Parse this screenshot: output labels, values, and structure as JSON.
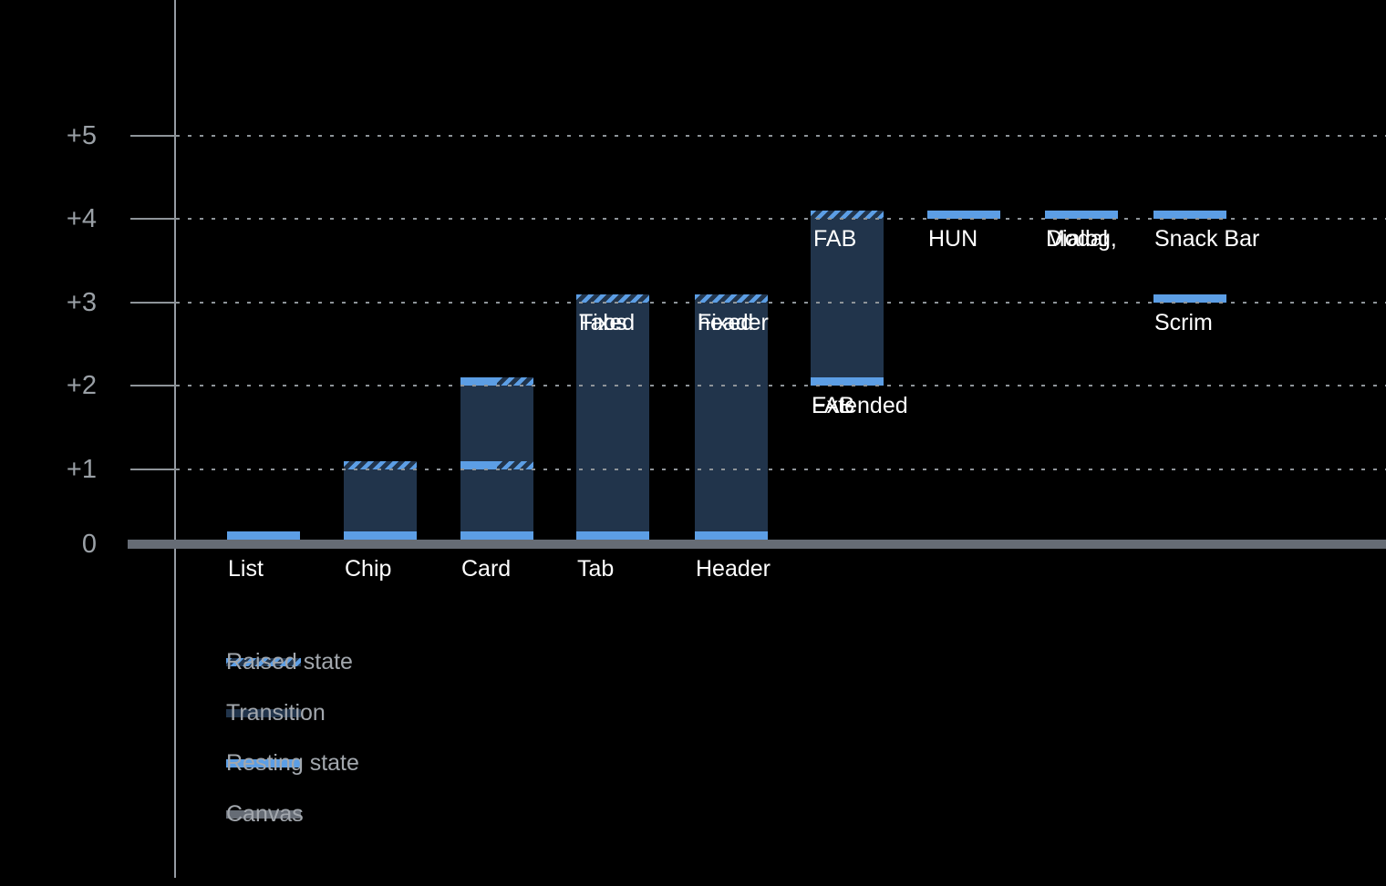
{
  "chart_data": {
    "type": "bar",
    "y_axis": {
      "tick_labels": [
        "+5",
        "+4",
        "+3",
        "+2",
        "+1",
        "0"
      ],
      "tick_values": [
        5,
        4,
        3,
        2,
        1,
        0
      ],
      "ylim": [
        0,
        5.5
      ],
      "grid": "dotted"
    },
    "components": [
      {
        "name": "list",
        "label_lines": [
          "List"
        ],
        "label_placement": "baseline",
        "column": 0,
        "segments": [
          {
            "kind": "resting",
            "from": 0,
            "to": 0.1
          }
        ]
      },
      {
        "name": "chip",
        "label_lines": [
          "Chip"
        ],
        "label_placement": "baseline",
        "column": 1,
        "segments": [
          {
            "kind": "resting",
            "from": 0,
            "to": 0.1
          },
          {
            "kind": "transition",
            "from": 0.1,
            "to": 1
          },
          {
            "kind": "raised",
            "from": 1,
            "to": 1.1
          }
        ]
      },
      {
        "name": "card",
        "label_lines": [
          "Card"
        ],
        "label_placement": "baseline",
        "column": 2,
        "segments": [
          {
            "kind": "resting",
            "from": 0,
            "to": 0.1
          },
          {
            "kind": "transition",
            "from": 0.1,
            "to": 1
          },
          {
            "kind": "resting-raised-split",
            "from": 1,
            "to": 1.1
          },
          {
            "kind": "transition",
            "from": 1.1,
            "to": 2
          },
          {
            "kind": "resting-raised-split",
            "from": 2,
            "to": 2.1
          }
        ]
      },
      {
        "name": "tab",
        "label_lines": [
          "Tab"
        ],
        "label_placement": "baseline",
        "inner_label_lines": [
          "Fixed",
          "Tabs"
        ],
        "column": 3,
        "segments": [
          {
            "kind": "resting",
            "from": 0,
            "to": 0.1
          },
          {
            "kind": "transition",
            "from": 0.1,
            "to": 3
          },
          {
            "kind": "raised",
            "from": 3,
            "to": 3.1
          }
        ]
      },
      {
        "name": "header",
        "label_lines": [
          "Header"
        ],
        "label_placement": "baseline",
        "inner_label_lines": [
          "Fixed",
          "header"
        ],
        "column": 4,
        "segments": [
          {
            "kind": "resting",
            "from": 0,
            "to": 0.1
          },
          {
            "kind": "transition",
            "from": 0.1,
            "to": 3
          },
          {
            "kind": "raised",
            "from": 3,
            "to": 3.1
          }
        ]
      },
      {
        "name": "extended-fab",
        "label_lines": [
          "Extended",
          "FAB"
        ],
        "label_placement": "below-bar",
        "inner_label_lines": [
          "FAB"
        ],
        "column": 5,
        "segments": [
          {
            "kind": "resting",
            "from": 2,
            "to": 2.1
          },
          {
            "kind": "transition",
            "from": 2.1,
            "to": 4
          },
          {
            "kind": "raised",
            "from": 4,
            "to": 4.1
          }
        ]
      },
      {
        "name": "hun",
        "label_lines": [
          "HUN"
        ],
        "label_placement": "below-bar",
        "column": 6,
        "segments": [
          {
            "kind": "resting",
            "from": 4,
            "to": 4.1
          }
        ]
      },
      {
        "name": "dialog-modal",
        "label_lines": [
          "Dialog,",
          "Modal"
        ],
        "label_placement": "below-bar",
        "column": 7,
        "segments": [
          {
            "kind": "resting",
            "from": 4,
            "to": 4.1
          }
        ]
      },
      {
        "name": "snack-bar",
        "label_lines": [
          "Snack Bar"
        ],
        "label_placement": "below-bar",
        "column": 8,
        "segments": [
          {
            "kind": "resting",
            "from": 4,
            "to": 4.1
          }
        ]
      },
      {
        "name": "scrim",
        "label_lines": [
          "Scrim"
        ],
        "label_placement": "below-bar",
        "column": 8,
        "segments": [
          {
            "kind": "resting",
            "from": 3,
            "to": 3.1
          }
        ]
      }
    ],
    "legend": [
      {
        "kind": "raised",
        "label": "Raised state"
      },
      {
        "kind": "transition",
        "label": "Transition"
      },
      {
        "kind": "resting",
        "label": "Resting state"
      },
      {
        "kind": "canvas",
        "label": "Canvas"
      }
    ],
    "colors": {
      "background": "#000000",
      "resting": "#5C9EE5",
      "transition": "#21344B",
      "canvas": "#666C75",
      "axis": "#959BA3",
      "grid": "#8E9499",
      "tick_label": "#9AA0A6",
      "bar_label": "#FFFFFF",
      "legend_label": "#A2A7AD"
    }
  }
}
